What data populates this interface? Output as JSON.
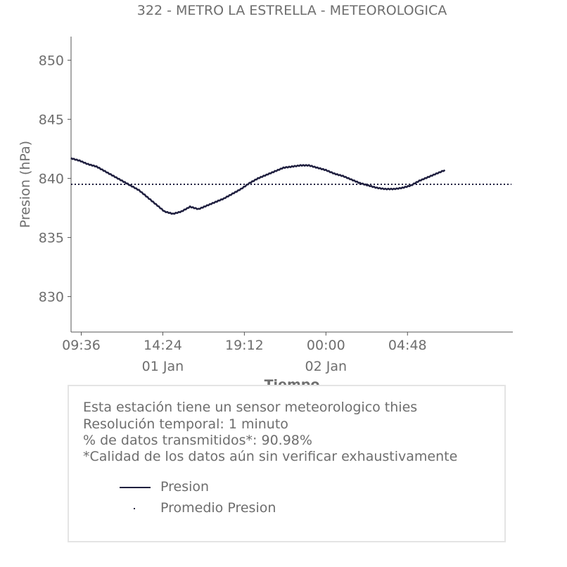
{
  "chart_data": {
    "type": "line",
    "title": "322 - METRO LA ESTRELLA - METEOROLOGICA",
    "xlabel": "Tiempo",
    "ylabel": "Presion (hPa)",
    "ylim": [
      827,
      852
    ],
    "xlim": [
      "01 Jan 09:00",
      "02 Jan 11:00"
    ],
    "x_ticks": [
      {
        "label": "09:36",
        "sublabel": ""
      },
      {
        "label": "14:24",
        "sublabel": "01 Jan"
      },
      {
        "label": "19:12",
        "sublabel": ""
      },
      {
        "label": "00:00",
        "sublabel": "02 Jan"
      },
      {
        "label": "04:48",
        "sublabel": ""
      }
    ],
    "y_ticks": [
      830,
      835,
      840,
      845,
      850
    ],
    "grid": false,
    "series": [
      {
        "name": "Presion",
        "color": "#1f1f3f",
        "style": "solid",
        "x": [
          "09:00",
          "09:30",
          "10:00",
          "10:30",
          "11:00",
          "11:30",
          "12:00",
          "12:30",
          "13:00",
          "13:30",
          "14:00",
          "14:30",
          "15:00",
          "15:30",
          "16:00",
          "16:30",
          "17:00",
          "17:30",
          "18:00",
          "18:30",
          "19:00",
          "19:30",
          "20:00",
          "20:30",
          "21:00",
          "21:30",
          "22:00",
          "22:30",
          "23:00",
          "23:30",
          "00:00",
          "00:30",
          "01:00",
          "01:30",
          "02:00",
          "02:30",
          "03:00",
          "03:30",
          "04:00",
          "04:30",
          "05:00",
          "05:30",
          "06:00",
          "06:30",
          "07:00"
        ],
        "values": [
          841.7,
          841.5,
          841.2,
          841.0,
          840.6,
          840.2,
          839.8,
          839.4,
          839.0,
          838.4,
          837.8,
          837.2,
          837.0,
          837.2,
          837.6,
          837.4,
          837.7,
          838.0,
          838.3,
          838.7,
          839.1,
          839.6,
          840.0,
          840.3,
          840.6,
          840.9,
          841.0,
          841.1,
          841.1,
          840.9,
          840.7,
          840.4,
          840.2,
          839.9,
          839.6,
          839.4,
          839.2,
          839.1,
          839.1,
          839.2,
          839.4,
          839.8,
          840.1,
          840.4,
          840.7
        ]
      },
      {
        "name": "Promedio Presion",
        "color": "#1f1f3f",
        "style": "dotted",
        "value": 839.5
      }
    ],
    "legend": {
      "placement": "bottom",
      "entries": [
        "Presion",
        "Promedio Presion"
      ]
    }
  },
  "info": {
    "line1": "Esta estación tiene un sensor meteorologico thies",
    "line2": "Resolución temporal: 1 minuto",
    "line3": "% de datos transmitidos*: 90.98%",
    "line4": "*Calidad de los datos aún sin verificar exhaustivamente"
  }
}
